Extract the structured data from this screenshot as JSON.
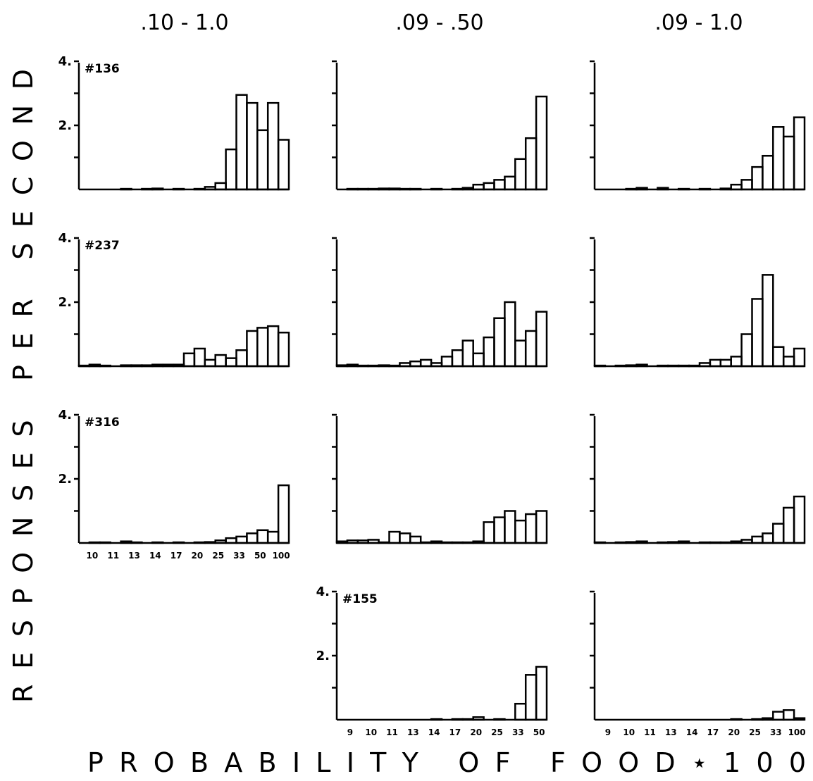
{
  "figure": {
    "column_titles": [
      ".10  -  1.0",
      ".09  -  .50",
      ".09  -  1.0"
    ],
    "y_axis_label": "RESPONSES PER SECOND",
    "x_axis_label": "PROBABILITY OF FOOD⋆100"
  },
  "chart_data": {
    "type": "bar",
    "xlabel": "PROBABILITY OF FOOD * 100",
    "ylabel": "RESPONSES PER SECOND",
    "ylim": [
      0,
      5
    ],
    "yticks": [
      1,
      2,
      3,
      4
    ],
    "ytick_labels": {
      "2": "2.",
      "4": "4."
    },
    "columns": [
      {
        "title": ".10 - 1.0",
        "categories": [
          "10",
          "11",
          "13",
          "14",
          "17",
          "20",
          "25",
          "33",
          "50",
          "100"
        ],
        "tick_labels": [
          "10",
          "11",
          "13",
          "14",
          "17",
          "20",
          "25",
          "33",
          "50",
          "100"
        ]
      },
      {
        "title": ".09 - .50",
        "categories": [
          "9",
          "10",
          "11",
          "13",
          "14",
          "17",
          "20",
          "25",
          "33",
          "50"
        ],
        "tick_labels": [
          "9",
          "10",
          "11",
          "13",
          "14",
          "17",
          "20",
          "25",
          "33",
          "50"
        ]
      },
      {
        "title": ".09 - 1.0",
        "categories": [
          "9",
          "10",
          "11",
          "13",
          "14",
          "17",
          "20",
          "25",
          "33",
          "100"
        ],
        "tick_labels": [
          "9",
          "10",
          "11",
          "13",
          "14",
          "17",
          "20",
          "25",
          "33",
          "100"
        ]
      }
    ],
    "panels": [
      {
        "row": 0,
        "col": 0,
        "subject": "#136",
        "show_y_labels": true,
        "show_x_labels": false,
        "values": [
          0,
          0,
          0,
          0,
          0.02,
          0,
          0.02,
          0.03,
          0,
          0.02,
          0,
          0.02,
          0.08,
          0.2,
          1.25,
          2.95,
          2.7,
          1.85,
          2.7,
          1.55
        ]
      },
      {
        "row": 0,
        "col": 1,
        "subject": "",
        "show_y_labels": false,
        "show_x_labels": false,
        "values": [
          0,
          0.02,
          0.02,
          0.02,
          0.03,
          0.03,
          0.02,
          0.02,
          0,
          0.02,
          0,
          0.02,
          0.05,
          0.15,
          0.2,
          0.3,
          0.4,
          0.95,
          1.6,
          2.9
        ]
      },
      {
        "row": 0,
        "col": 2,
        "subject": "",
        "show_y_labels": false,
        "show_x_labels": false,
        "values": [
          0,
          0,
          0,
          0.02,
          0.05,
          0,
          0.05,
          0,
          0.02,
          0,
          0.02,
          0,
          0.03,
          0.15,
          0.3,
          0.7,
          1.05,
          1.95,
          1.65,
          2.25
        ]
      },
      {
        "row": 1,
        "col": 0,
        "subject": "#237",
        "show_y_labels": true,
        "show_x_labels": false,
        "values": [
          0.02,
          0.05,
          0.02,
          0,
          0.03,
          0.03,
          0.03,
          0.05,
          0.05,
          0.05,
          0.4,
          0.55,
          0.2,
          0.35,
          0.25,
          0.5,
          1.1,
          1.2,
          1.25,
          1.05
        ]
      },
      {
        "row": 1,
        "col": 1,
        "subject": "",
        "show_y_labels": false,
        "show_x_labels": false,
        "values": [
          0.03,
          0.05,
          0.02,
          0.02,
          0.03,
          0.02,
          0.1,
          0.15,
          0.2,
          0.1,
          0.3,
          0.5,
          0.8,
          0.4,
          0.9,
          1.5,
          2.0,
          0.8,
          1.1,
          1.7
        ]
      },
      {
        "row": 1,
        "col": 2,
        "subject": "",
        "show_y_labels": false,
        "show_x_labels": false,
        "values": [
          0.02,
          0,
          0.02,
          0.03,
          0.05,
          0,
          0.02,
          0.02,
          0.02,
          0.02,
          0.1,
          0.2,
          0.2,
          0.3,
          1.0,
          2.1,
          2.85,
          0.6,
          0.3,
          0.55
        ]
      },
      {
        "row": 2,
        "col": 0,
        "subject": "#316",
        "show_y_labels": true,
        "show_x_labels": true,
        "values": [
          0,
          0.02,
          0.02,
          0,
          0.05,
          0.02,
          0,
          0.02,
          0,
          0.02,
          0,
          0.02,
          0.03,
          0.08,
          0.15,
          0.2,
          0.3,
          0.4,
          0.35,
          1.8
        ]
      },
      {
        "row": 2,
        "col": 1,
        "subject": "",
        "show_y_labels": false,
        "show_x_labels": false,
        "values": [
          0.05,
          0.08,
          0.08,
          0.1,
          0.02,
          0.35,
          0.3,
          0.2,
          0.02,
          0.05,
          0.02,
          0.02,
          0.02,
          0.05,
          0.65,
          0.8,
          1.0,
          0.7,
          0.9,
          1.0
        ]
      },
      {
        "row": 2,
        "col": 2,
        "subject": "",
        "show_y_labels": false,
        "show_x_labels": false,
        "values": [
          0.02,
          0,
          0.02,
          0.03,
          0.05,
          0,
          0.02,
          0.03,
          0.05,
          0,
          0.02,
          0.02,
          0.02,
          0.05,
          0.1,
          0.2,
          0.3,
          0.6,
          1.1,
          1.45
        ]
      },
      {
        "row": 3,
        "col": 1,
        "subject": "#155",
        "show_y_labels": true,
        "show_x_labels": true,
        "values": [
          0,
          0,
          0,
          0,
          0,
          0,
          0,
          0,
          0,
          0.02,
          0,
          0.02,
          0.02,
          0.08,
          0,
          0.02,
          0,
          0.5,
          1.4,
          1.65
        ]
      },
      {
        "row": 3,
        "col": 2,
        "subject": "",
        "show_y_labels": false,
        "show_x_labels": true,
        "values": [
          0,
          0,
          0,
          0,
          0,
          0,
          0,
          0,
          0,
          0,
          0,
          0,
          0,
          0.02,
          0,
          0.02,
          0.05,
          0.25,
          0.3,
          0.05
        ]
      }
    ],
    "tail_values": {
      "0-0": [],
      "0-1": [],
      "0-2": []
    }
  }
}
